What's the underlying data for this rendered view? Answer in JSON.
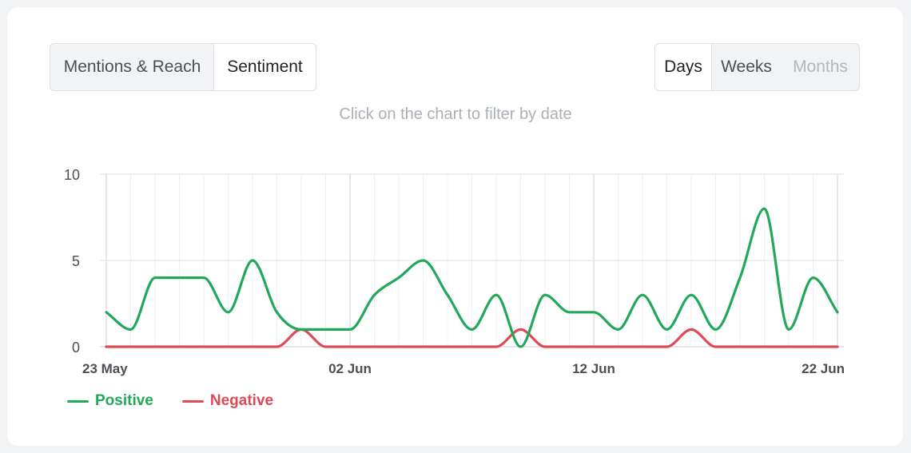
{
  "tabs": {
    "mentions_label": "Mentions & Reach",
    "sentiment_label": "Sentiment",
    "active": "Sentiment"
  },
  "granularity": {
    "days_label": "Days",
    "weeks_label": "Weeks",
    "months_label": "Months",
    "active": "Days",
    "disabled": "Months"
  },
  "hint": "Click on the chart to filter by date",
  "colors": {
    "positive": "#22a85a",
    "negative": "#dc4b55",
    "grid": "#e6e8eb",
    "axis_text": "#4a4f55"
  },
  "chart_data": {
    "type": "line",
    "x_start": "23 May",
    "x_count": 31,
    "x_tick_labels": [
      "23 May",
      "02 Jun",
      "12 Jun",
      "22 Jun"
    ],
    "x_tick_indices": [
      0,
      10,
      20,
      30
    ],
    "y_ticks": [
      0,
      5,
      10
    ],
    "ylim": [
      0,
      10
    ],
    "series": [
      {
        "name": "Positive",
        "color": "#22a85a",
        "values": [
          2,
          1,
          4,
          4,
          4,
          2,
          5,
          2,
          1,
          1,
          1,
          3,
          4,
          5,
          3,
          1,
          3,
          0,
          3,
          2,
          2,
          1,
          3,
          1,
          3,
          1,
          4,
          8,
          1,
          4,
          2
        ]
      },
      {
        "name": "Negative",
        "color": "#dc4b55",
        "values": [
          0,
          0,
          0,
          0,
          0,
          0,
          0,
          0,
          1,
          0,
          0,
          0,
          0,
          0,
          0,
          0,
          0,
          1,
          0,
          0,
          0,
          0,
          0,
          0,
          1,
          0,
          0,
          0,
          0,
          0,
          0
        ]
      }
    ],
    "legend_position": "bottom-left",
    "grid": true
  }
}
